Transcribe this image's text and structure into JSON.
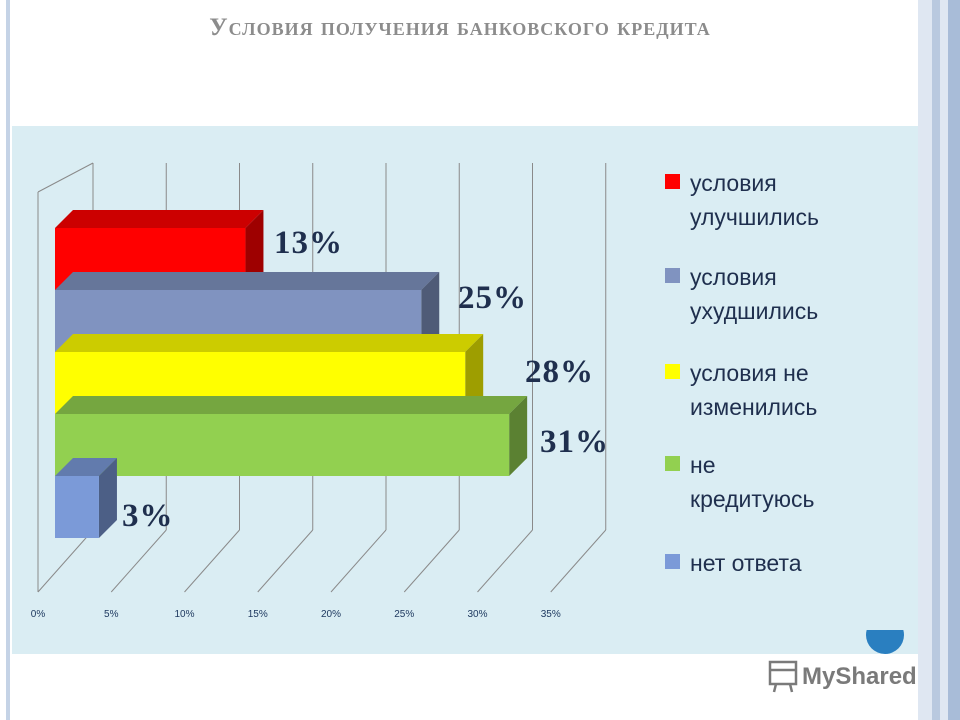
{
  "title": "Условия получения банковского кредита",
  "chart_data": {
    "type": "bar",
    "orientation": "horizontal",
    "style": "3d",
    "categories": [
      "условия улучшились",
      "условия ухудшились",
      "условия не изменились",
      "не кредитуюсь",
      "нет ответа"
    ],
    "values": [
      13,
      25,
      28,
      31,
      3
    ],
    "data_labels": [
      "13%",
      "25%",
      "28%",
      "31%",
      "3%"
    ],
    "colors": [
      "#ff0000",
      "#8093c0",
      "#ffff00",
      "#92d050",
      "#7b9ad8"
    ],
    "xlim": [
      0,
      35
    ],
    "x_ticks": [
      "0%",
      "5%",
      "10%",
      "15%",
      "20%",
      "25%",
      "30%",
      "35%"
    ],
    "grid": true,
    "legend_position": "right",
    "legend": [
      {
        "line1": "условия",
        "line2": "улучшились"
      },
      {
        "line1": "условия",
        "line2": "ухудшились"
      },
      {
        "line1": "условия не",
        "line2": "изменились"
      },
      {
        "line1": "не",
        "line2": "кредитуюсь"
      },
      {
        "line1": "нет ответа",
        "line2": ""
      }
    ]
  },
  "watermark": {
    "text": "MyShared"
  }
}
